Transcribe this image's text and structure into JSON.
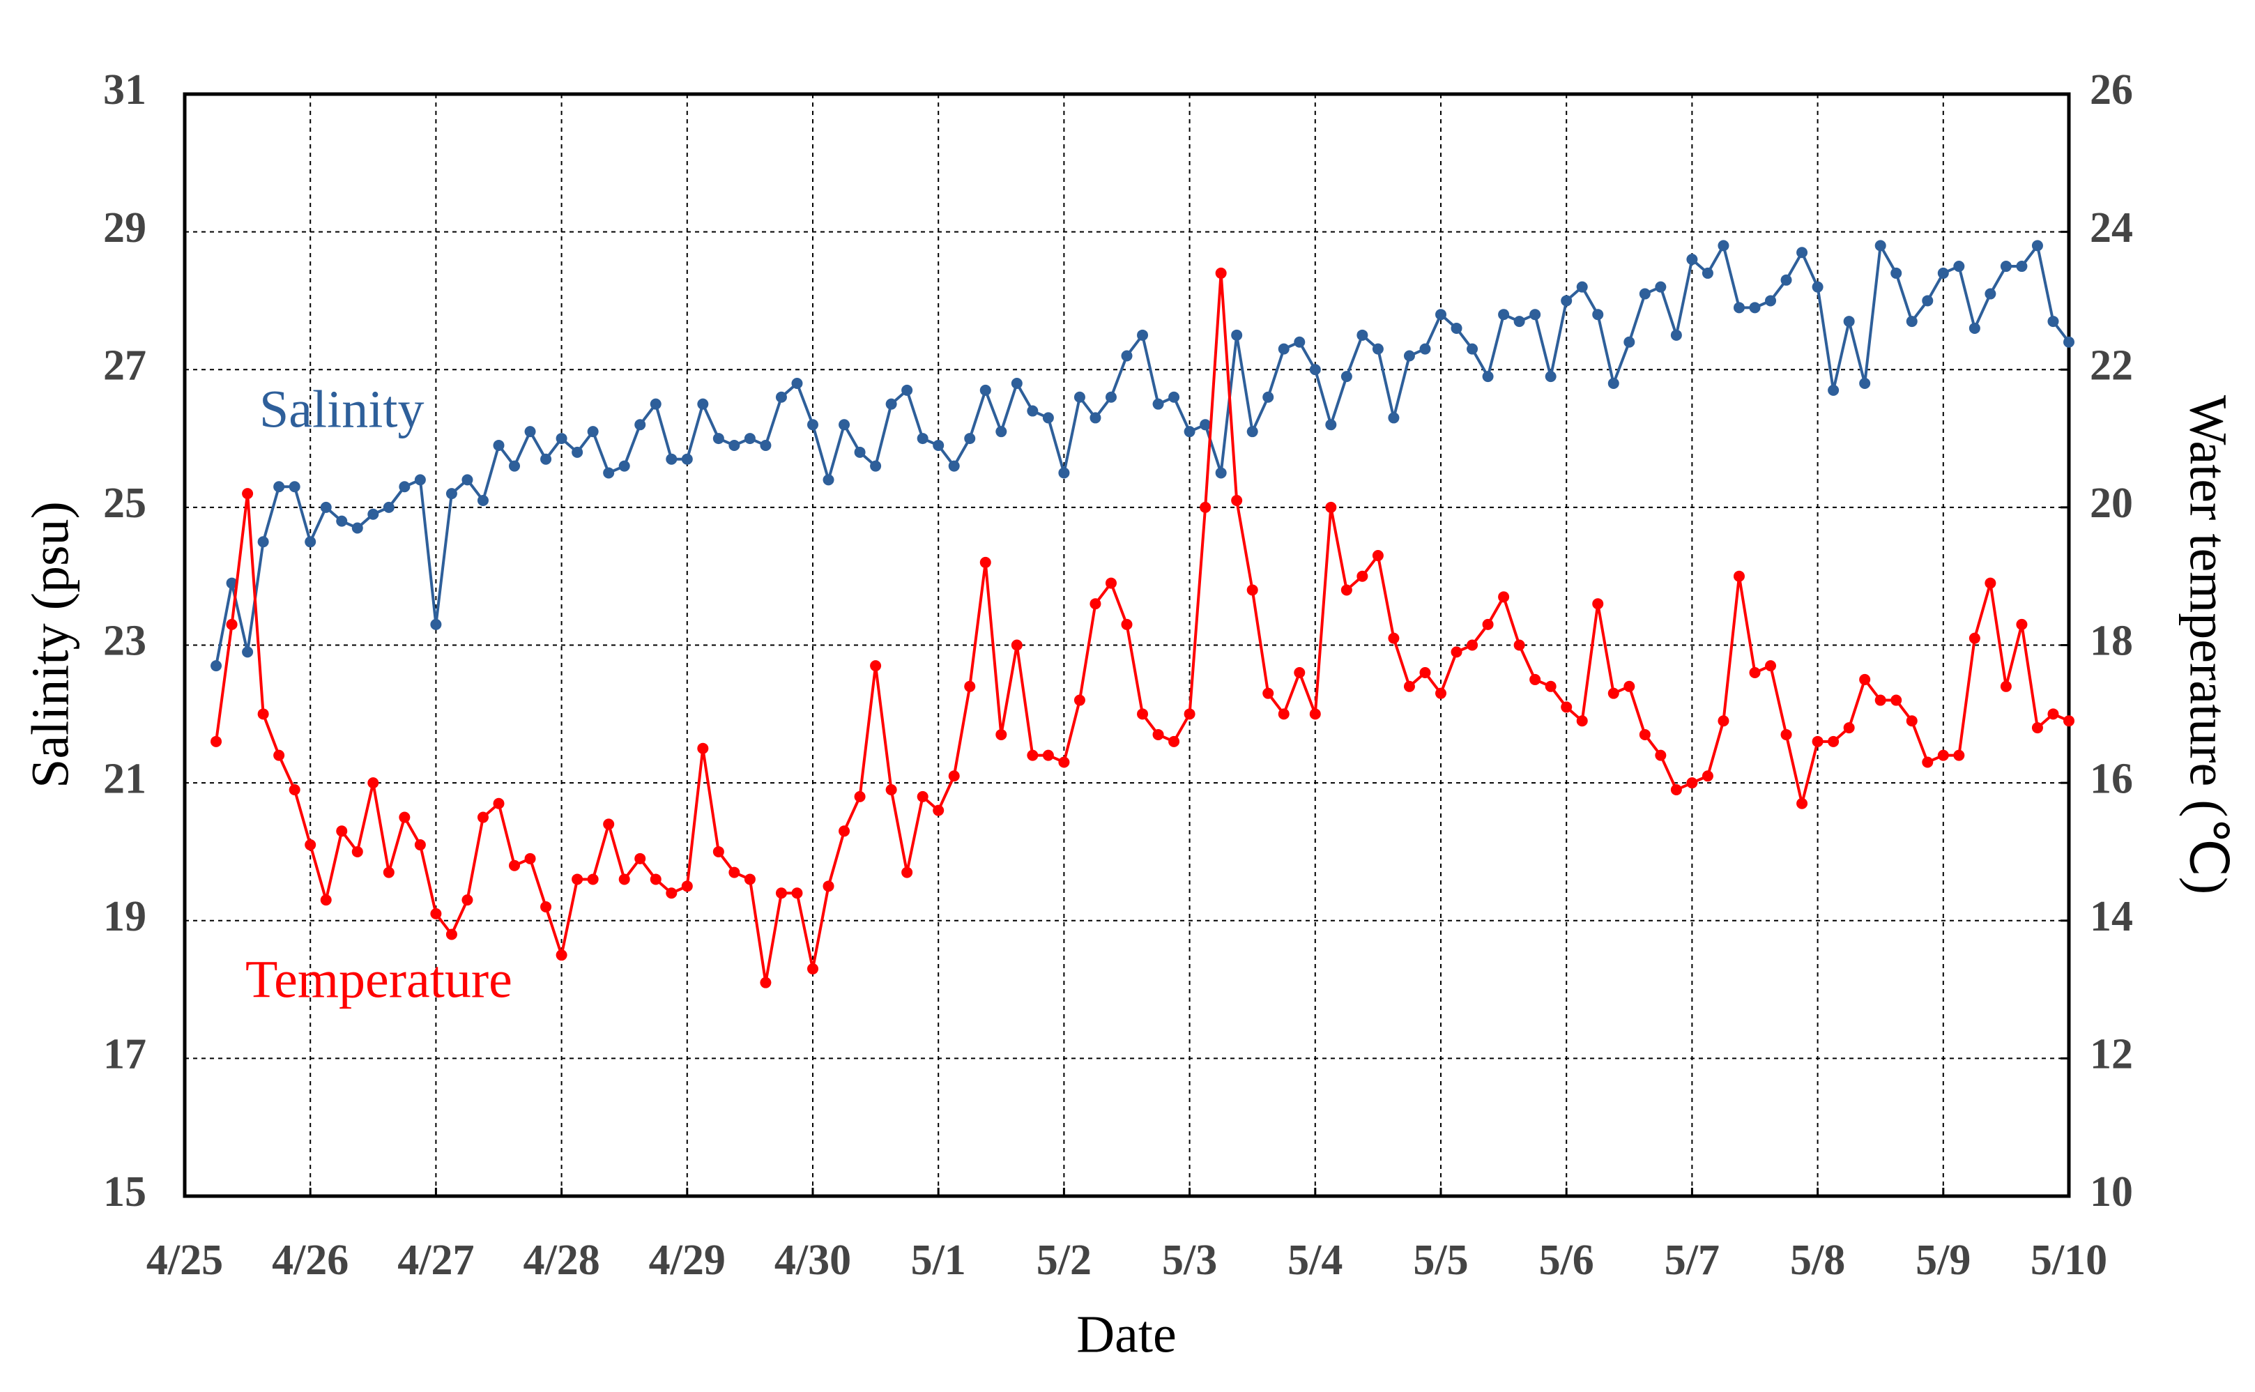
{
  "chart_data": {
    "type": "line",
    "x_label": "Date",
    "y_label": "Salinity (psu)",
    "y2_label": "Water temperature (℃)",
    "x": [
      0.25,
      0.375,
      0.5,
      0.625,
      0.75,
      0.875,
      1,
      1.125,
      1.25,
      1.375,
      1.5,
      1.625,
      1.75,
      1.875,
      2,
      2.125,
      2.25,
      2.375,
      2.5,
      2.625,
      2.75,
      2.875,
      3,
      3.125,
      3.25,
      3.375,
      3.5,
      3.625,
      3.75,
      3.875,
      4,
      4.125,
      4.25,
      4.375,
      4.5,
      4.625,
      4.75,
      4.875,
      5,
      5.125,
      5.25,
      5.375,
      5.5,
      5.625,
      5.75,
      5.875,
      6,
      6.125,
      6.25,
      6.375,
      6.5,
      6.625,
      6.75,
      6.875,
      7,
      7.125,
      7.25,
      7.375,
      7.5,
      7.625,
      7.75,
      7.875,
      8,
      8.125,
      8.25,
      8.375,
      8.5,
      8.625,
      8.75,
      8.875,
      9,
      9.125,
      9.25,
      9.375,
      9.5,
      9.625,
      9.75,
      9.875,
      10,
      10.125,
      10.25,
      10.375,
      10.5,
      10.625,
      10.75,
      10.875,
      11,
      11.125,
      11.25,
      11.375,
      11.5,
      11.625,
      11.75,
      11.875,
      12,
      12.125,
      12.25,
      12.375,
      12.5,
      12.625,
      12.75,
      12.875,
      13,
      13.125,
      13.25,
      13.375,
      13.5,
      13.625,
      13.75,
      13.875,
      14,
      14.125,
      14.25,
      14.375,
      14.5,
      14.625,
      14.75,
      14.875,
      15
    ],
    "series": [
      {
        "name": "Salinity",
        "color": "#2e5f9a",
        "axis": "y",
        "values": [
          22.7,
          23.9,
          22.9,
          24.5,
          25.3,
          25.3,
          24.5,
          25.0,
          24.8,
          24.7,
          24.9,
          25.0,
          25.3,
          25.4,
          23.3,
          25.2,
          25.4,
          25.1,
          25.9,
          25.6,
          26.1,
          25.7,
          26.0,
          25.8,
          26.1,
          25.5,
          25.6,
          26.2,
          26.5,
          25.7,
          25.7,
          26.5,
          26.0,
          25.9,
          26.0,
          25.9,
          26.6,
          26.8,
          26.2,
          25.4,
          26.2,
          25.8,
          25.6,
          26.5,
          26.7,
          26.0,
          25.9,
          25.6,
          26.0,
          26.7,
          26.1,
          26.8,
          26.4,
          26.3,
          25.5,
          26.6,
          26.3,
          26.6,
          27.2,
          27.5,
          26.5,
          26.6,
          26.1,
          26.2,
          25.5,
          27.5,
          26.1,
          26.6,
          27.3,
          27.4,
          27.0,
          26.2,
          26.9,
          27.5,
          27.3,
          26.3,
          27.2,
          27.3,
          27.8,
          27.6,
          27.3,
          26.9,
          27.8,
          27.7,
          27.8,
          26.9,
          28.0,
          28.2,
          27.8,
          26.8,
          27.4,
          28.1,
          28.2,
          27.5,
          28.6,
          28.4,
          28.8,
          27.9,
          27.9,
          28.0,
          28.3,
          28.7,
          28.2,
          26.7,
          27.7,
          26.8,
          28.8,
          28.4,
          27.7,
          28.0,
          28.4,
          28.5,
          27.6,
          28.1,
          28.5,
          28.5,
          28.8,
          27.7,
          27.4
        ]
      },
      {
        "name": "Temperature",
        "color": "#ff0000",
        "axis": "y2",
        "values": [
          16.6,
          18.3,
          20.2,
          17.0,
          16.4,
          15.9,
          15.1,
          14.3,
          15.3,
          15.0,
          16.0,
          14.7,
          15.5,
          15.1,
          14.1,
          13.8,
          14.3,
          15.5,
          15.7,
          14.8,
          14.9,
          14.2,
          13.5,
          14.6,
          14.6,
          15.4,
          14.6,
          14.9,
          14.6,
          14.4,
          14.5,
          16.5,
          15.0,
          14.7,
          14.6,
          13.1,
          14.4,
          14.4,
          13.3,
          14.5,
          15.3,
          15.8,
          17.7,
          15.9,
          14.7,
          15.8,
          15.6,
          16.1,
          17.4,
          19.2,
          16.7,
          18.0,
          16.4,
          16.4,
          16.3,
          17.2,
          18.6,
          18.9,
          18.3,
          17.0,
          16.7,
          16.6,
          17.0,
          20.0,
          23.4,
          20.1,
          18.8,
          17.3,
          17.0,
          17.6,
          17.0,
          20.0,
          18.8,
          19.0,
          19.3,
          18.1,
          17.4,
          17.6,
          17.3,
          17.9,
          18.0,
          18.3,
          18.7,
          18.0,
          17.5,
          17.4,
          17.1,
          16.9,
          18.6,
          17.3,
          17.4,
          16.7,
          16.4,
          15.9,
          16.0,
          16.1,
          16.9,
          19.0,
          17.6,
          17.7,
          16.7,
          15.7,
          16.6,
          16.6,
          16.8,
          17.5,
          17.2,
          17.2,
          16.9,
          16.3,
          16.4,
          16.4,
          18.1,
          18.9,
          17.4,
          18.3,
          16.8,
          17.0,
          16.9
        ]
      }
    ],
    "xlim": [
      0,
      15
    ],
    "xticks": [
      {
        "value": 0,
        "label": "4/25"
      },
      {
        "value": 1,
        "label": "4/26"
      },
      {
        "value": 2,
        "label": "4/27"
      },
      {
        "value": 3,
        "label": "4/28"
      },
      {
        "value": 4,
        "label": "4/29"
      },
      {
        "value": 5,
        "label": "4/30"
      },
      {
        "value": 6,
        "label": "5/1"
      },
      {
        "value": 7,
        "label": "5/2"
      },
      {
        "value": 8,
        "label": "5/3"
      },
      {
        "value": 9,
        "label": "5/4"
      },
      {
        "value": 10,
        "label": "5/5"
      },
      {
        "value": 11,
        "label": "5/6"
      },
      {
        "value": 12,
        "label": "5/7"
      },
      {
        "value": 13,
        "label": "5/8"
      },
      {
        "value": 14,
        "label": "5/9"
      },
      {
        "value": 15,
        "label": "5/10"
      }
    ],
    "ylim": [
      15,
      31
    ],
    "yticks": [
      15,
      17,
      19,
      21,
      23,
      25,
      27,
      29,
      31
    ],
    "y2lim": [
      10,
      26
    ],
    "y2ticks": [
      10,
      12,
      14,
      16,
      18,
      20,
      22,
      24,
      26
    ],
    "grid": true
  }
}
